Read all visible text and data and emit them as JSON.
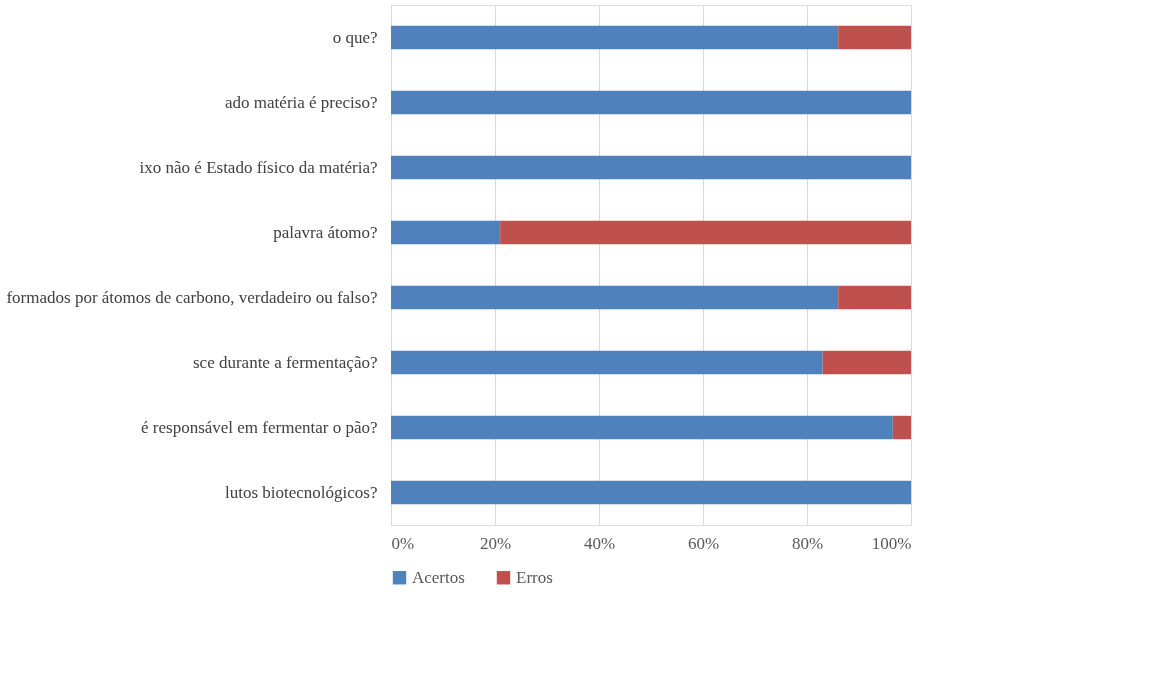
{
  "chart_data": {
    "type": "bar",
    "orientation": "horizontal",
    "stacked": true,
    "categories": [
      "o que?",
      "ado matéria é preciso?",
      "ixo não é Estado físico da matéria?",
      "palavra átomo?",
      "formados por átomos de carbono, verdadeiro ou falso?",
      "sce durante a fermentação?",
      "é responsável em fermentar o pão?",
      "lutos biotecnológicos?"
    ],
    "series": [
      {
        "name": "Acertos",
        "color": "#4f81bd",
        "values": [
          86,
          100,
          100,
          21,
          86,
          83,
          96.5,
          100
        ]
      },
      {
        "name": "Erros",
        "color": "#c0504d",
        "values": [
          14,
          0,
          0,
          79,
          14,
          17,
          3.5,
          0
        ]
      }
    ],
    "xlim": [
      0,
      100
    ],
    "xticks": [
      {
        "value": 0,
        "label": "0%"
      },
      {
        "value": 20,
        "label": "20%"
      },
      {
        "value": 40,
        "label": "40%"
      },
      {
        "value": 60,
        "label": "60%"
      },
      {
        "value": 80,
        "label": "80%"
      },
      {
        "value": 100,
        "label": "100%"
      }
    ],
    "grid": "x",
    "legend": "bottom"
  }
}
